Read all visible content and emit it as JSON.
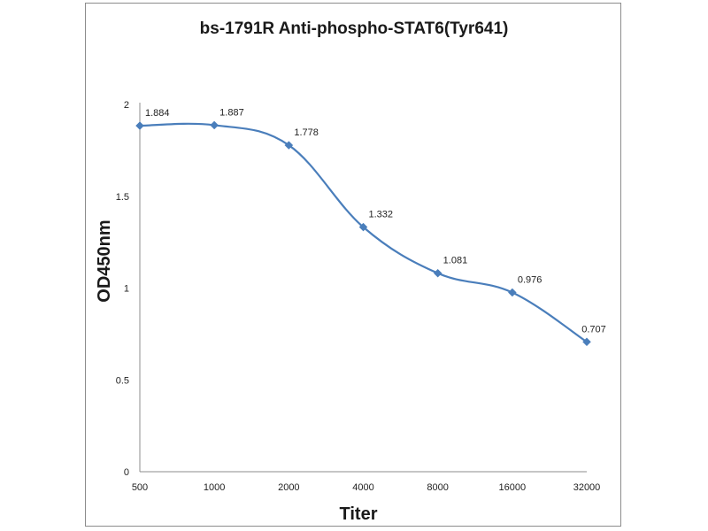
{
  "chart_data": {
    "type": "line",
    "title": "bs-1791R Anti-phospho-STAT6(Tyr641)",
    "xlabel": "Titer",
    "ylabel": "OD450nm",
    "categories": [
      "500",
      "1000",
      "2000",
      "4000",
      "8000",
      "16000",
      "32000"
    ],
    "series": [
      {
        "name": "OD450nm",
        "values": [
          1.884,
          1.887,
          1.778,
          1.332,
          1.081,
          0.976,
          0.707
        ],
        "labels": [
          "1.884",
          "1.887",
          "1.778",
          "1.332",
          "1.081",
          "0.976",
          "0.707"
        ],
        "color": "#4a7ebb"
      }
    ],
    "ylim": [
      0,
      2
    ],
    "yticks": [
      "0",
      "0.5",
      "1",
      "1.5",
      "2"
    ],
    "grid": false,
    "legend": "none",
    "smooth": true
  }
}
